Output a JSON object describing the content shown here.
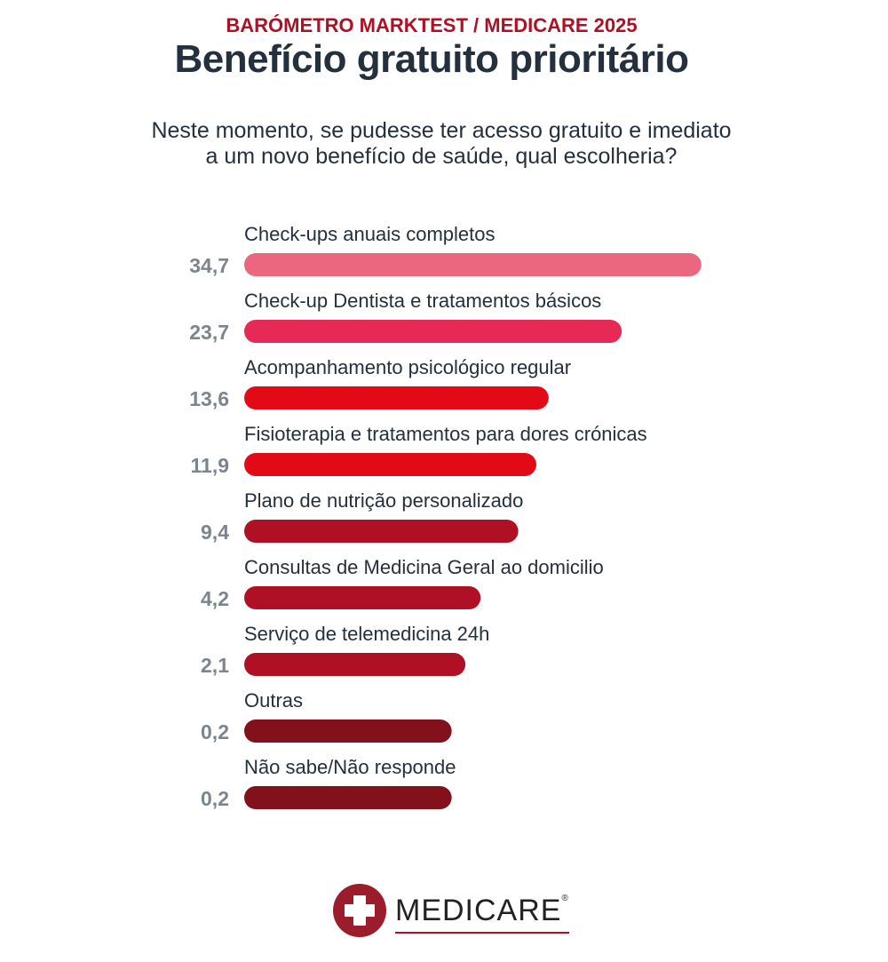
{
  "header": {
    "kicker": "BARÓMETRO MARKTEST / MEDICARE 2025",
    "title": "Benefício gratuito prioritário",
    "subtitle_line1": "Neste momento, se pudesse ter acesso gratuito e imediato",
    "subtitle_line2": "a um novo benefício de saúde, qual escolheria?"
  },
  "chart_data": {
    "type": "bar",
    "orientation": "horizontal",
    "title": "Benefício gratuito prioritário",
    "categories": [
      "Check-ups anuais completos",
      "Check-up Dentista e tratamentos básicos",
      "Acompanhamento psicológico regular",
      "Fisioterapia e tratamentos para dores crónicas",
      "Plano de nutrição personalizado",
      "Consultas de Medicina Geral ao domicilio",
      "Serviço de telemedicina 24h",
      "Outras",
      "Não sabe/Não responde"
    ],
    "values": [
      34.7,
      23.7,
      13.6,
      11.9,
      9.4,
      4.2,
      2.1,
      0.2,
      0.2
    ],
    "value_labels": [
      "34,7",
      "23,7",
      "13,6",
      "11,9",
      "9,4",
      "4,2",
      "2,1",
      "0,2",
      "0,2"
    ],
    "colors": [
      "#eb6780",
      "#e62a55",
      "#e20a17",
      "#e20a17",
      "#af1023",
      "#af1023",
      "#af1023",
      "#83111b",
      "#83111b"
    ],
    "grid": false,
    "legend": "none"
  },
  "footer": {
    "logo_text": "MEDICARE",
    "logo_registered": "®",
    "logo_color": "#9b1c2b"
  }
}
